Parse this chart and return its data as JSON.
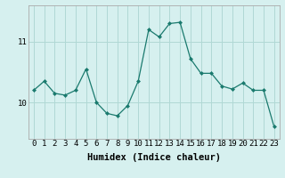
{
  "x": [
    0,
    1,
    2,
    3,
    4,
    5,
    6,
    7,
    8,
    9,
    10,
    11,
    12,
    13,
    14,
    15,
    16,
    17,
    18,
    19,
    20,
    21,
    22,
    23
  ],
  "y": [
    10.2,
    10.35,
    10.15,
    10.12,
    10.2,
    10.55,
    10.0,
    9.82,
    9.78,
    9.95,
    10.35,
    11.2,
    11.08,
    11.3,
    11.32,
    10.72,
    10.48,
    10.48,
    10.27,
    10.22,
    10.32,
    10.2,
    10.2,
    9.6
  ],
  "line_color": "#1a7a6e",
  "marker": "D",
  "marker_size": 2,
  "bg_color": "#d6f0ef",
  "grid_color": "#b0d8d5",
  "xlabel": "Humidex (Indice chaleur)",
  "xlim": [
    -0.5,
    23.5
  ],
  "ylim": [
    9.4,
    11.6
  ],
  "yticks": [
    10,
    11
  ],
  "xticks": [
    0,
    1,
    2,
    3,
    4,
    5,
    6,
    7,
    8,
    9,
    10,
    11,
    12,
    13,
    14,
    15,
    16,
    17,
    18,
    19,
    20,
    21,
    22,
    23
  ],
  "xtick_labels": [
    "0",
    "1",
    "2",
    "3",
    "4",
    "5",
    "6",
    "7",
    "8",
    "9",
    "10",
    "11",
    "12",
    "13",
    "14",
    "15",
    "16",
    "17",
    "18",
    "19",
    "20",
    "21",
    "22",
    "23"
  ],
  "xlabel_fontsize": 7.5,
  "tick_fontsize": 6.5
}
